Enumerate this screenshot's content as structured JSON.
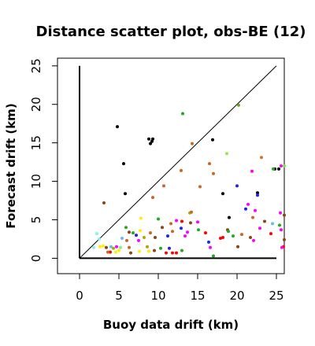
{
  "chart_data": {
    "type": "scatter",
    "title": "Distance scatter plot, obs-BE (12)",
    "xlabel": "Buoy data drift (km)",
    "ylabel": "Forecast drift (km)",
    "xlim": [
      -2.8,
      26
    ],
    "ylim": [
      -2,
      26
    ],
    "xticks": [
      0,
      5,
      10,
      15,
      20,
      25
    ],
    "yticks": [
      0,
      5,
      10,
      15,
      20,
      25
    ],
    "reference_lines": {
      "diagonal": {
        "from": [
          0,
          0
        ],
        "to": [
          25,
          25
        ],
        "color": "#000000"
      },
      "x_axis_line": {
        "from": [
          0,
          0
        ],
        "to": [
          25,
          0
        ],
        "color": "#000000"
      },
      "y_axis_line": {
        "from": [
          0,
          0
        ],
        "to": [
          0,
          25
        ],
        "color": "#000000"
      }
    },
    "box": true,
    "grid": false,
    "points": [
      {
        "x": 4.8,
        "y": 17.1,
        "color": "#000000"
      },
      {
        "x": 8.8,
        "y": 15.5,
        "color": "#000000"
      },
      {
        "x": 9.2,
        "y": 15.2,
        "color": "#000000"
      },
      {
        "x": 9.3,
        "y": 15.5,
        "color": "#000000"
      },
      {
        "x": 9.0,
        "y": 14.9,
        "color": "#000000"
      },
      {
        "x": 5.6,
        "y": 12.3,
        "color": "#000000"
      },
      {
        "x": 5.8,
        "y": 8.4,
        "color": "#000000"
      },
      {
        "x": 16.9,
        "y": 15.4,
        "color": "#000000"
      },
      {
        "x": 18.2,
        "y": 8.4,
        "color": "#000000"
      },
      {
        "x": 19.0,
        "y": 5.3,
        "color": "#000000"
      },
      {
        "x": 22.6,
        "y": 8.5,
        "color": "#000000"
      },
      {
        "x": 24.8,
        "y": 11.6,
        "color": "#000000"
      },
      {
        "x": 25.3,
        "y": 11.6,
        "color": "#000000"
      },
      {
        "x": 13.1,
        "y": 18.8,
        "color": "#22aa22"
      },
      {
        "x": 20.2,
        "y": 19.9,
        "color": "#66aa22"
      },
      {
        "x": 14.3,
        "y": 14.9,
        "color": "#cc6622"
      },
      {
        "x": 12.9,
        "y": 11.4,
        "color": "#cc6622"
      },
      {
        "x": 16.5,
        "y": 12.3,
        "color": "#cc6622"
      },
      {
        "x": 17.0,
        "y": 11.0,
        "color": "#cc6622"
      },
      {
        "x": 15.3,
        "y": 9.3,
        "color": "#cc6622"
      },
      {
        "x": 10.7,
        "y": 9.4,
        "color": "#cc6622"
      },
      {
        "x": 9.3,
        "y": 7.9,
        "color": "#cc6622"
      },
      {
        "x": 3.1,
        "y": 7.2,
        "color": "#8b4513"
      },
      {
        "x": 18.7,
        "y": 13.6,
        "color": "#88ee44"
      },
      {
        "x": 20.0,
        "y": 9.4,
        "color": "#2222ee"
      },
      {
        "x": 21.1,
        "y": 6.4,
        "color": "#2222ee"
      },
      {
        "x": 22.6,
        "y": 8.2,
        "color": "#2222ee"
      },
      {
        "x": 23.1,
        "y": 13.1,
        "color": "#cc7733"
      },
      {
        "x": 24.6,
        "y": 11.6,
        "color": "#22aa22"
      },
      {
        "x": 25.6,
        "y": 12.0,
        "color": "#ff00ff"
      },
      {
        "x": 26.0,
        "y": 12.0,
        "color": "#88dd44"
      },
      {
        "x": 21.9,
        "y": 11.3,
        "color": "#ff00ff"
      },
      {
        "x": 21.4,
        "y": 7.0,
        "color": "#ff00ff"
      },
      {
        "x": 22.3,
        "y": 6.2,
        "color": "#ff00ff"
      },
      {
        "x": 22.0,
        "y": 5.3,
        "color": "#cc6622"
      },
      {
        "x": 23.5,
        "y": 4.8,
        "color": "#8b4513"
      },
      {
        "x": 25.5,
        "y": 5.9,
        "color": "#ff00ff"
      },
      {
        "x": 26.0,
        "y": 5.6,
        "color": "#8b4513"
      },
      {
        "x": 24.5,
        "y": 4.5,
        "color": "#66bbee"
      },
      {
        "x": 25.4,
        "y": 4.3,
        "color": "#22aa22"
      },
      {
        "x": 22.9,
        "y": 3.9,
        "color": "#ff00ff"
      },
      {
        "x": 21.7,
        "y": 2.7,
        "color": "#8b4513"
      },
      {
        "x": 20.6,
        "y": 3.1,
        "color": "#cc6622"
      },
      {
        "x": 19.5,
        "y": 2.9,
        "color": "#22aa22"
      },
      {
        "x": 18.8,
        "y": 3.7,
        "color": "#8b4513"
      },
      {
        "x": 17.9,
        "y": 2.6,
        "color": "#ff0000"
      },
      {
        "x": 18.2,
        "y": 2.7,
        "color": "#ff0000"
      },
      {
        "x": 22.1,
        "y": 2.3,
        "color": "#ff00ff"
      },
      {
        "x": 24.3,
        "y": 3.2,
        "color": "#ff0000"
      },
      {
        "x": 25.6,
        "y": 3.7,
        "color": "#ff00ff"
      },
      {
        "x": 26.0,
        "y": 2.4,
        "color": "#8b4513"
      },
      {
        "x": 25.9,
        "y": 1.5,
        "color": "#ff0000"
      },
      {
        "x": 25.7,
        "y": 1.4,
        "color": "#ff00ff"
      },
      {
        "x": 16.6,
        "y": 1.4,
        "color": "#ff00ff"
      },
      {
        "x": 16.4,
        "y": 2.1,
        "color": "#2222ee"
      },
      {
        "x": 16.0,
        "y": 3.3,
        "color": "#ff0000"
      },
      {
        "x": 15.1,
        "y": 3.7,
        "color": "#22aa22"
      },
      {
        "x": 15.0,
        "y": 4.7,
        "color": "#ff00ff"
      },
      {
        "x": 14.0,
        "y": 5.9,
        "color": "#aaaa00"
      },
      {
        "x": 14.2,
        "y": 6.0,
        "color": "#cc6622"
      },
      {
        "x": 14.1,
        "y": 4.6,
        "color": "#8b4513"
      },
      {
        "x": 13.0,
        "y": 4.8,
        "color": "#ff0000"
      },
      {
        "x": 12.9,
        "y": 3.9,
        "color": "#2222ee"
      },
      {
        "x": 13.7,
        "y": 3.4,
        "color": "#ff00ff"
      },
      {
        "x": 13.4,
        "y": 2.9,
        "color": "#ff00ff"
      },
      {
        "x": 12.3,
        "y": 4.9,
        "color": "#ff00ff"
      },
      {
        "x": 11.6,
        "y": 4.5,
        "color": "#cc6622"
      },
      {
        "x": 11.8,
        "y": 3.5,
        "color": "#cc6622"
      },
      {
        "x": 11.2,
        "y": 2.9,
        "color": "#2222ee"
      },
      {
        "x": 11.4,
        "y": 1.3,
        "color": "#2222ee"
      },
      {
        "x": 11.0,
        "y": 0.7,
        "color": "#ff0000"
      },
      {
        "x": 11.8,
        "y": 0.7,
        "color": "#ff0000"
      },
      {
        "x": 12.3,
        "y": 0.7,
        "color": "#ff0000"
      },
      {
        "x": 10.5,
        "y": 4.0,
        "color": "#8b4513"
      },
      {
        "x": 10.0,
        "y": 5.1,
        "color": "#22aa22"
      },
      {
        "x": 9.6,
        "y": 2.7,
        "color": "#8b4513"
      },
      {
        "x": 9.0,
        "y": 3.3,
        "color": "#cc6622"
      },
      {
        "x": 9.5,
        "y": 1.0,
        "color": "#8b4513"
      },
      {
        "x": 8.8,
        "y": 0.9,
        "color": "#ffee00"
      },
      {
        "x": 8.6,
        "y": 1.5,
        "color": "#aaaa00"
      },
      {
        "x": 7.8,
        "y": 5.2,
        "color": "#ffee00"
      },
      {
        "x": 7.7,
        "y": 3.6,
        "color": "#ffee00"
      },
      {
        "x": 7.2,
        "y": 3.0,
        "color": "#2222ee"
      },
      {
        "x": 6.8,
        "y": 3.3,
        "color": "#22aa22"
      },
      {
        "x": 6.3,
        "y": 3.4,
        "color": "#8b4513"
      },
      {
        "x": 5.9,
        "y": 4.0,
        "color": "#22aa22"
      },
      {
        "x": 6.0,
        "y": 2.3,
        "color": "#cc6622"
      },
      {
        "x": 6.3,
        "y": 1.4,
        "color": "#cc6622"
      },
      {
        "x": 6.5,
        "y": 0.7,
        "color": "#8b4513"
      },
      {
        "x": 7.6,
        "y": 0.9,
        "color": "#ffee00"
      },
      {
        "x": 8.2,
        "y": 2.7,
        "color": "#aaaa00"
      },
      {
        "x": 5.4,
        "y": 2.6,
        "color": "#66bbee"
      },
      {
        "x": 5.2,
        "y": 1.4,
        "color": "#88ee88"
      },
      {
        "x": 4.7,
        "y": 1.5,
        "color": "#ff00ff"
      },
      {
        "x": 5.0,
        "y": 1.0,
        "color": "#ffee00"
      },
      {
        "x": 4.6,
        "y": 0.8,
        "color": "#ffee00"
      },
      {
        "x": 4.3,
        "y": 1.3,
        "color": "#aaaa00"
      },
      {
        "x": 4.0,
        "y": 1.5,
        "color": "#66bbee"
      },
      {
        "x": 3.9,
        "y": 0.8,
        "color": "#ff0000"
      },
      {
        "x": 3.6,
        "y": 0.8,
        "color": "#cc6622"
      },
      {
        "x": 3.4,
        "y": 1.4,
        "color": "#8b4513"
      },
      {
        "x": 3.0,
        "y": 1.6,
        "color": "#ffee00"
      },
      {
        "x": 2.6,
        "y": 1.5,
        "color": "#ffee00"
      },
      {
        "x": 2.2,
        "y": 3.2,
        "color": "#88eeee"
      },
      {
        "x": 1.8,
        "y": 1.4,
        "color": "#88eeee"
      },
      {
        "x": 2.5,
        "y": 2.5,
        "color": "#88eeee"
      },
      {
        "x": 7.5,
        "y": 2.3,
        "color": "#ff00ff"
      },
      {
        "x": 10.3,
        "y": 1.3,
        "color": "#22aa22"
      },
      {
        "x": 13.0,
        "y": 1.0,
        "color": "#22aa22"
      },
      {
        "x": 17.0,
        "y": 0.3,
        "color": "#22aa22"
      },
      {
        "x": 20.1,
        "y": 1.5,
        "color": "#8b4513"
      },
      {
        "x": 18.9,
        "y": 3.5,
        "color": "#22aa22"
      }
    ]
  }
}
